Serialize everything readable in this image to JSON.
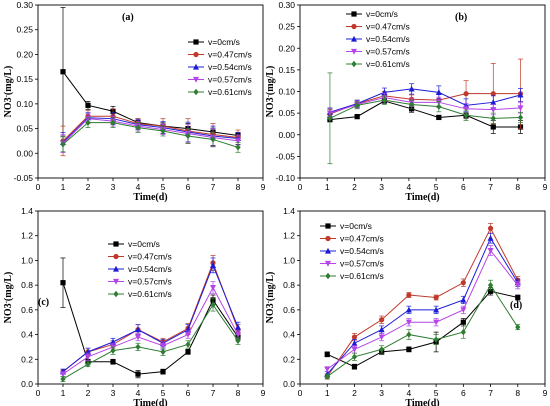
{
  "colors": {
    "v0": "#000000",
    "v047": "#c0392b",
    "v054": "#1c1cd8",
    "v057": "#b545e8",
    "v061": "#2e7d32"
  },
  "chart_data": [
    {
      "panel": "(a)",
      "type": "line",
      "xlabel": "Time(d)",
      "ylabel": "NO3-(mg/L)",
      "xlim": [
        0,
        9
      ],
      "ylim": [
        -0.05,
        0.3
      ],
      "xticks": [
        0,
        1,
        2,
        3,
        4,
        5,
        6,
        7,
        8,
        9
      ],
      "yticks": [
        -0.05,
        0.0,
        0.05,
        0.1,
        0.15,
        0.2,
        0.25,
        0.3
      ],
      "ytick_labels": [
        "-0.05",
        "0.00",
        "0.05",
        "0.10",
        "0.15",
        "0.20",
        "0.25",
        "0.30"
      ],
      "legend_position": "right",
      "x": [
        1,
        2,
        3,
        4,
        5,
        6,
        7,
        8
      ],
      "series": [
        {
          "name": "v=0cm/s",
          "marker": "square",
          "color": "v0",
          "values": [
            0.165,
            0.097,
            0.085,
            0.062,
            0.055,
            0.05,
            0.043,
            0.036
          ],
          "errors": [
            0.13,
            0.008,
            0.01,
            0.008,
            0.008,
            0.01,
            0.008,
            0.006
          ]
        },
        {
          "name": "v=0.47cm/s",
          "marker": "circle",
          "color": "v047",
          "values": [
            0.025,
            0.075,
            0.075,
            0.06,
            0.055,
            0.045,
            0.038,
            0.032
          ],
          "errors": [
            0.03,
            0.012,
            0.015,
            0.01,
            0.015,
            0.025,
            0.022,
            0.015
          ]
        },
        {
          "name": "v=0.54cm/s",
          "marker": "triangle-up",
          "color": "v054",
          "values": [
            0.022,
            0.072,
            0.07,
            0.058,
            0.052,
            0.043,
            0.035,
            0.03
          ],
          "errors": [
            0.02,
            0.01,
            0.012,
            0.01,
            0.012,
            0.02,
            0.02,
            0.012
          ]
        },
        {
          "name": "v=0.57cm/s",
          "marker": "triangle-down",
          "color": "v057",
          "values": [
            0.02,
            0.07,
            0.065,
            0.055,
            0.048,
            0.04,
            0.032,
            0.025
          ],
          "errors": [
            0.018,
            0.01,
            0.01,
            0.01,
            0.01,
            0.018,
            0.018,
            0.012
          ]
        },
        {
          "name": "v=0.61cm/s",
          "marker": "diamond",
          "color": "v061",
          "values": [
            0.018,
            0.062,
            0.062,
            0.052,
            0.045,
            0.035,
            0.028,
            0.012
          ],
          "errors": [
            0.015,
            0.01,
            0.01,
            0.01,
            0.01,
            0.015,
            0.015,
            0.01
          ]
        }
      ]
    },
    {
      "panel": "(b)",
      "type": "line",
      "xlabel": "Time(d)",
      "ylabel": "NO3-(mg/L)",
      "xlim": [
        0,
        9
      ],
      "ylim": [
        -0.1,
        0.3
      ],
      "xticks": [
        0,
        1,
        2,
        3,
        4,
        5,
        6,
        7,
        8,
        9
      ],
      "yticks": [
        -0.1,
        -0.05,
        0.0,
        0.05,
        0.1,
        0.15,
        0.2,
        0.25,
        0.3
      ],
      "ytick_labels": [
        "-0.10",
        "-0.05",
        "0.00",
        "0.05",
        "0.10",
        "0.15",
        "0.20",
        "0.25",
        "0.30"
      ],
      "legend_position": "top-right",
      "x": [
        1.1,
        2.1,
        3.1,
        4.1,
        5.1,
        6.1,
        7.1,
        8.1
      ],
      "series": [
        {
          "name": "v=0cm/s",
          "marker": "square",
          "color": "v0",
          "values": [
            0.035,
            0.042,
            0.078,
            0.06,
            0.04,
            0.045,
            0.018,
            0.018
          ],
          "errors": [
            0.005,
            0.005,
            0.005,
            0.008,
            0.005,
            0.008,
            0.015,
            0.015
          ]
        },
        {
          "name": "v=0.47cm/s",
          "marker": "circle",
          "color": "v047",
          "values": [
            0.048,
            0.072,
            0.09,
            0.082,
            0.08,
            0.095,
            0.095,
            0.095
          ],
          "errors": [
            0.01,
            0.008,
            0.01,
            0.01,
            0.015,
            0.03,
            0.07,
            0.08
          ]
        },
        {
          "name": "v=0.54cm/s",
          "marker": "triangle-up",
          "color": "v054",
          "values": [
            0.052,
            0.072,
            0.098,
            0.106,
            0.098,
            0.068,
            0.075,
            0.092
          ],
          "errors": [
            0.01,
            0.008,
            0.01,
            0.012,
            0.015,
            0.015,
            0.015,
            0.015
          ]
        },
        {
          "name": "v=0.57cm/s",
          "marker": "triangle-down",
          "color": "v057",
          "values": [
            0.05,
            0.07,
            0.086,
            0.075,
            0.075,
            0.06,
            0.058,
            0.062
          ],
          "errors": [
            0.01,
            0.008,
            0.01,
            0.01,
            0.012,
            0.012,
            0.012,
            0.012
          ]
        },
        {
          "name": "v=0.61cm/s",
          "marker": "diamond",
          "color": "v061",
          "values": [
            0.038,
            0.068,
            0.08,
            0.07,
            0.065,
            0.045,
            0.038,
            0.04
          ],
          "errors": [
            0.105,
            0.008,
            0.01,
            0.01,
            0.012,
            0.012,
            0.012,
            0.012
          ]
        }
      ]
    },
    {
      "panel": "(c)",
      "type": "line",
      "xlabel": "Time(d)",
      "ylabel": "NO3-(mg/L)",
      "xlim": [
        0,
        9
      ],
      "ylim": [
        0.0,
        1.4
      ],
      "xticks": [
        0,
        1,
        2,
        3,
        4,
        5,
        6,
        7,
        8,
        9
      ],
      "yticks": [
        0.0,
        0.2,
        0.4,
        0.6,
        0.8,
        1.0,
        1.2,
        1.4
      ],
      "ytick_labels": [
        "0.0",
        "0.2",
        "0.4",
        "0.6",
        "0.8",
        "1.0",
        "1.2",
        "1.4"
      ],
      "legend_position": "top-left",
      "x": [
        1,
        2,
        3,
        4,
        5,
        6,
        7,
        8
      ],
      "series": [
        {
          "name": "v=0cm/s",
          "marker": "square",
          "color": "v0",
          "values": [
            0.82,
            0.18,
            0.18,
            0.08,
            0.1,
            0.26,
            0.68,
            0.38
          ],
          "errors": [
            0.2,
            0.02,
            0.02,
            0.03,
            0.02,
            0.02,
            0.04,
            0.03
          ]
        },
        {
          "name": "v=0.47cm/s",
          "marker": "circle",
          "color": "v047",
          "values": [
            0.1,
            0.26,
            0.32,
            0.44,
            0.34,
            0.45,
            0.98,
            0.44
          ],
          "errors": [
            0.02,
            0.03,
            0.03,
            0.04,
            0.03,
            0.04,
            0.06,
            0.04
          ]
        },
        {
          "name": "v=0.54cm/s",
          "marker": "triangle-up",
          "color": "v054",
          "values": [
            0.1,
            0.26,
            0.34,
            0.44,
            0.33,
            0.44,
            0.96,
            0.46
          ],
          "errors": [
            0.02,
            0.03,
            0.03,
            0.04,
            0.03,
            0.04,
            0.06,
            0.04
          ]
        },
        {
          "name": "v=0.57cm/s",
          "marker": "triangle-down",
          "color": "v057",
          "values": [
            0.08,
            0.22,
            0.3,
            0.38,
            0.31,
            0.4,
            0.78,
            0.4
          ],
          "errors": [
            0.02,
            0.03,
            0.03,
            0.03,
            0.03,
            0.03,
            0.05,
            0.03
          ]
        },
        {
          "name": "v=0.61cm/s",
          "marker": "diamond",
          "color": "v061",
          "values": [
            0.04,
            0.16,
            0.27,
            0.3,
            0.26,
            0.32,
            0.64,
            0.35
          ],
          "errors": [
            0.02,
            0.02,
            0.03,
            0.03,
            0.03,
            0.03,
            0.05,
            0.03
          ]
        }
      ]
    },
    {
      "panel": "(d)",
      "type": "line",
      "xlabel": "Time(d)",
      "ylabel": "NO3-(mg/L)",
      "xlim": [
        0,
        9
      ],
      "ylim": [
        0.0,
        1.4
      ],
      "xticks": [
        0,
        1,
        2,
        3,
        4,
        5,
        6,
        7,
        8,
        9
      ],
      "yticks": [
        0.0,
        0.2,
        0.4,
        0.6,
        0.8,
        1.0,
        1.2,
        1.4
      ],
      "ytick_labels": [
        "0.0",
        "0.2",
        "0.4",
        "0.6",
        "0.8",
        "1.0",
        "1.2",
        "1.4"
      ],
      "legend_position": "top-left",
      "x": [
        1,
        2,
        3,
        4,
        5,
        6,
        7,
        8
      ],
      "series": [
        {
          "name": "v=0cm/s",
          "marker": "square",
          "color": "v0",
          "values": [
            0.24,
            0.14,
            0.26,
            0.28,
            0.34,
            0.5,
            0.75,
            0.7
          ],
          "errors": [
            0.02,
            0.02,
            0.02,
            0.02,
            0.08,
            0.03,
            0.03,
            0.02
          ]
        },
        {
          "name": "v=0.47cm/s",
          "marker": "circle",
          "color": "v047",
          "values": [
            0.06,
            0.38,
            0.52,
            0.72,
            0.7,
            0.82,
            1.26,
            0.84
          ],
          "errors": [
            0.02,
            0.03,
            0.03,
            0.02,
            0.02,
            0.03,
            0.04,
            0.03
          ]
        },
        {
          "name": "v=0.54cm/s",
          "marker": "triangle-up",
          "color": "v054",
          "values": [
            0.08,
            0.33,
            0.44,
            0.6,
            0.6,
            0.68,
            1.18,
            0.82
          ],
          "errors": [
            0.02,
            0.03,
            0.03,
            0.03,
            0.03,
            0.03,
            0.04,
            0.03
          ]
        },
        {
          "name": "v=0.57cm/s",
          "marker": "triangle-down",
          "color": "v057",
          "values": [
            0.12,
            0.28,
            0.38,
            0.5,
            0.5,
            0.6,
            1.08,
            0.8
          ],
          "errors": [
            0.02,
            0.03,
            0.03,
            0.03,
            0.03,
            0.03,
            0.04,
            0.03
          ]
        },
        {
          "name": "v=0.61cm/s",
          "marker": "diamond",
          "color": "v061",
          "values": [
            0.06,
            0.22,
            0.28,
            0.4,
            0.36,
            0.42,
            0.8,
            0.46
          ],
          "errors": [
            0.02,
            0.03,
            0.03,
            0.04,
            0.04,
            0.05,
            0.04,
            0.02
          ]
        }
      ]
    }
  ]
}
